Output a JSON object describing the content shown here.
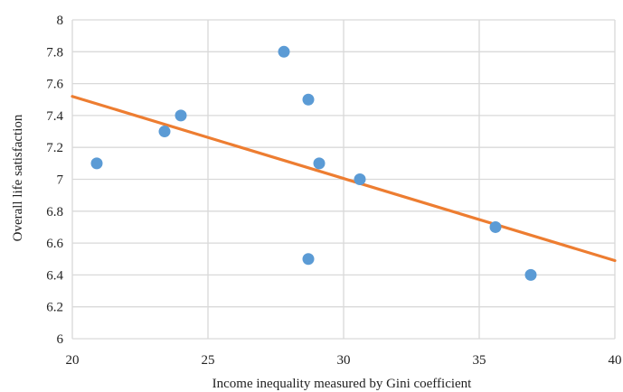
{
  "chart_data": {
    "type": "scatter",
    "title": "",
    "xlabel": "Income inequality measured by Gini coefficient",
    "ylabel": "Overall life satisfaction",
    "xlim": [
      20,
      40
    ],
    "ylim": [
      6,
      8
    ],
    "x_ticks": [
      "20",
      "25",
      "30",
      "35",
      "40"
    ],
    "y_ticks": [
      "6",
      "6.2",
      "6.4",
      "6.6",
      "6.8",
      "7",
      "7.2",
      "7.4",
      "7.6",
      "7.8",
      "8"
    ],
    "grid": true,
    "legend": "none",
    "series": [
      {
        "color": "#5b9bd5",
        "points": [
          {
            "x": 20.9,
            "y": 7.1
          },
          {
            "x": 23.4,
            "y": 7.3
          },
          {
            "x": 24.0,
            "y": 7.4
          },
          {
            "x": 27.8,
            "y": 7.8
          },
          {
            "x": 28.7,
            "y": 7.5
          },
          {
            "x": 29.1,
            "y": 7.1
          },
          {
            "x": 30.6,
            "y": 7.0
          },
          {
            "x": 28.7,
            "y": 6.5
          },
          {
            "x": 35.6,
            "y": 6.7
          },
          {
            "x": 36.9,
            "y": 6.4
          }
        ]
      }
    ],
    "trendline": {
      "type": "linear",
      "color": "#ed7d31",
      "from": {
        "x": 20,
        "y": 7.52
      },
      "to": {
        "x": 40,
        "y": 6.49
      }
    }
  }
}
